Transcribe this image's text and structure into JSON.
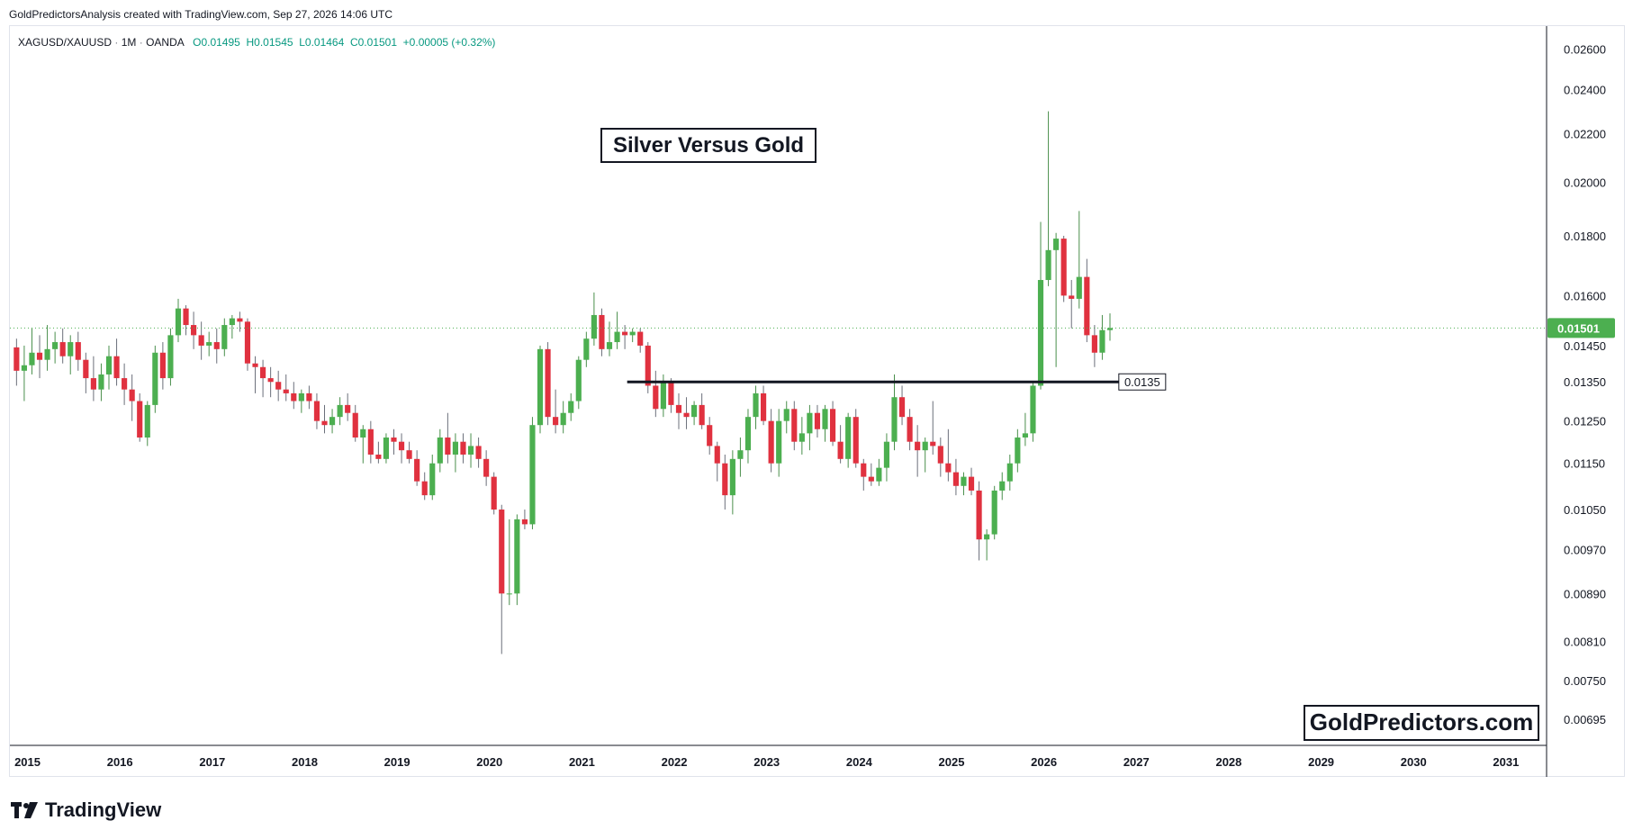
{
  "credit": "GoldPredictorsAnalysis created with TradingView.com, Sep 27, 2026 14:06 UTC",
  "legend": {
    "symbol": "XAGUSD/XAUUSD",
    "interval": "1M",
    "source": "OANDA",
    "open": "O0.01495",
    "high": "H0.01545",
    "low": "L0.01464",
    "close": "C0.01501",
    "change": "+0.00005 (+0.32%)"
  },
  "annotations": {
    "title": "Silver Versus Gold",
    "watermark": "GoldPredictors.com",
    "support_label": "0.0135"
  },
  "brand": {
    "name": "TradingView"
  },
  "colors": {
    "up": "#4caf50",
    "down": "#e0313f",
    "price_badge": "#4caf50",
    "support_line": "#131722"
  },
  "chart_data": {
    "type": "candlestick",
    "timeframe": "1M",
    "y_scale": "log",
    "ylim": [
      0.0066,
      0.0272
    ],
    "xlim": [
      2014.97,
      2031.6
    ],
    "y_ticks": [
      "0.02600",
      "0.02400",
      "0.02200",
      "0.02000",
      "0.01800",
      "0.01600",
      "0.01450",
      "0.01350",
      "0.01250",
      "0.01150",
      "0.01050",
      "0.00970",
      "0.00890",
      "0.00810",
      "0.00750",
      "0.00695"
    ],
    "x_ticks": [
      "2015",
      "2016",
      "2017",
      "2018",
      "2019",
      "2020",
      "2021",
      "2022",
      "2023",
      "2024",
      "2025",
      "2026",
      "2027",
      "2028",
      "2029",
      "2030",
      "2031"
    ],
    "last_price": "0.01501",
    "support": {
      "value": 0.0135,
      "from": 2021.65,
      "to": 2027.0
    },
    "candles": [
      {
        "o": 0.01445,
        "h": 0.0147,
        "l": 0.0134,
        "c": 0.0138
      },
      {
        "o": 0.0138,
        "h": 0.0145,
        "l": 0.013,
        "c": 0.01395
      },
      {
        "o": 0.01395,
        "h": 0.015,
        "l": 0.0137,
        "c": 0.0143
      },
      {
        "o": 0.0143,
        "h": 0.0148,
        "l": 0.0136,
        "c": 0.0141
      },
      {
        "o": 0.0141,
        "h": 0.0151,
        "l": 0.0138,
        "c": 0.0144
      },
      {
        "o": 0.0144,
        "h": 0.0149,
        "l": 0.014,
        "c": 0.0146
      },
      {
        "o": 0.0146,
        "h": 0.015,
        "l": 0.014,
        "c": 0.0142
      },
      {
        "o": 0.0142,
        "h": 0.0148,
        "l": 0.0137,
        "c": 0.0146
      },
      {
        "o": 0.0146,
        "h": 0.0149,
        "l": 0.0138,
        "c": 0.0141
      },
      {
        "o": 0.0141,
        "h": 0.0143,
        "l": 0.0132,
        "c": 0.0136
      },
      {
        "o": 0.0136,
        "h": 0.0142,
        "l": 0.013,
        "c": 0.0133
      },
      {
        "o": 0.0133,
        "h": 0.014,
        "l": 0.013,
        "c": 0.0137
      },
      {
        "o": 0.0137,
        "h": 0.0145,
        "l": 0.0133,
        "c": 0.0142
      },
      {
        "o": 0.0142,
        "h": 0.0147,
        "l": 0.0134,
        "c": 0.0136
      },
      {
        "o": 0.0136,
        "h": 0.014,
        "l": 0.0129,
        "c": 0.0133
      },
      {
        "o": 0.0133,
        "h": 0.0137,
        "l": 0.0125,
        "c": 0.013
      },
      {
        "o": 0.013,
        "h": 0.0132,
        "l": 0.012,
        "c": 0.0121
      },
      {
        "o": 0.0121,
        "h": 0.013,
        "l": 0.0119,
        "c": 0.0129
      },
      {
        "o": 0.0129,
        "h": 0.0145,
        "l": 0.0127,
        "c": 0.0143
      },
      {
        "o": 0.0143,
        "h": 0.0146,
        "l": 0.0133,
        "c": 0.0136
      },
      {
        "o": 0.0136,
        "h": 0.015,
        "l": 0.0134,
        "c": 0.0148
      },
      {
        "o": 0.0148,
        "h": 0.0159,
        "l": 0.0146,
        "c": 0.0156
      },
      {
        "o": 0.0156,
        "h": 0.0157,
        "l": 0.0148,
        "c": 0.0151
      },
      {
        "o": 0.0151,
        "h": 0.0155,
        "l": 0.0144,
        "c": 0.0148
      },
      {
        "o": 0.0148,
        "h": 0.0152,
        "l": 0.0141,
        "c": 0.0145
      },
      {
        "o": 0.0145,
        "h": 0.0149,
        "l": 0.0142,
        "c": 0.0146
      },
      {
        "o": 0.0146,
        "h": 0.015,
        "l": 0.014,
        "c": 0.0144
      },
      {
        "o": 0.0144,
        "h": 0.0153,
        "l": 0.0142,
        "c": 0.0151
      },
      {
        "o": 0.0151,
        "h": 0.0154,
        "l": 0.0147,
        "c": 0.0153
      },
      {
        "o": 0.0153,
        "h": 0.0155,
        "l": 0.0149,
        "c": 0.0152
      },
      {
        "o": 0.0152,
        "h": 0.0153,
        "l": 0.0138,
        "c": 0.014
      },
      {
        "o": 0.014,
        "h": 0.0142,
        "l": 0.0132,
        "c": 0.0139
      },
      {
        "o": 0.0139,
        "h": 0.0141,
        "l": 0.0131,
        "c": 0.0136
      },
      {
        "o": 0.0136,
        "h": 0.0139,
        "l": 0.0131,
        "c": 0.0135
      },
      {
        "o": 0.0135,
        "h": 0.0138,
        "l": 0.013,
        "c": 0.0133
      },
      {
        "o": 0.0133,
        "h": 0.0137,
        "l": 0.013,
        "c": 0.0132
      },
      {
        "o": 0.0132,
        "h": 0.0135,
        "l": 0.0128,
        "c": 0.013
      },
      {
        "o": 0.013,
        "h": 0.0133,
        "l": 0.0127,
        "c": 0.0132
      },
      {
        "o": 0.0132,
        "h": 0.0134,
        "l": 0.0128,
        "c": 0.013
      },
      {
        "o": 0.013,
        "h": 0.0132,
        "l": 0.0123,
        "c": 0.0125
      },
      {
        "o": 0.0125,
        "h": 0.0129,
        "l": 0.0122,
        "c": 0.0124
      },
      {
        "o": 0.0124,
        "h": 0.0128,
        "l": 0.0122,
        "c": 0.0126
      },
      {
        "o": 0.0126,
        "h": 0.0131,
        "l": 0.0124,
        "c": 0.0129
      },
      {
        "o": 0.0129,
        "h": 0.0132,
        "l": 0.0125,
        "c": 0.0127
      },
      {
        "o": 0.0127,
        "h": 0.0129,
        "l": 0.012,
        "c": 0.0121
      },
      {
        "o": 0.0121,
        "h": 0.0124,
        "l": 0.0115,
        "c": 0.0123
      },
      {
        "o": 0.0123,
        "h": 0.0125,
        "l": 0.0115,
        "c": 0.0117
      },
      {
        "o": 0.0117,
        "h": 0.012,
        "l": 0.0115,
        "c": 0.0116
      },
      {
        "o": 0.0116,
        "h": 0.0122,
        "l": 0.0115,
        "c": 0.0121
      },
      {
        "o": 0.0121,
        "h": 0.0123,
        "l": 0.0117,
        "c": 0.012
      },
      {
        "o": 0.012,
        "h": 0.0122,
        "l": 0.0115,
        "c": 0.0118
      },
      {
        "o": 0.0118,
        "h": 0.012,
        "l": 0.0115,
        "c": 0.0116
      },
      {
        "o": 0.0116,
        "h": 0.0118,
        "l": 0.011,
        "c": 0.0111
      },
      {
        "o": 0.0111,
        "h": 0.0113,
        "l": 0.0107,
        "c": 0.0108
      },
      {
        "o": 0.0108,
        "h": 0.0117,
        "l": 0.0107,
        "c": 0.0115
      },
      {
        "o": 0.0115,
        "h": 0.0123,
        "l": 0.0113,
        "c": 0.0121
      },
      {
        "o": 0.0121,
        "h": 0.0127,
        "l": 0.0115,
        "c": 0.0117
      },
      {
        "o": 0.0117,
        "h": 0.0122,
        "l": 0.0113,
        "c": 0.012
      },
      {
        "o": 0.012,
        "h": 0.0122,
        "l": 0.0115,
        "c": 0.0117
      },
      {
        "o": 0.0117,
        "h": 0.0122,
        "l": 0.0114,
        "c": 0.0119
      },
      {
        "o": 0.0119,
        "h": 0.0121,
        "l": 0.0114,
        "c": 0.0116
      },
      {
        "o": 0.0116,
        "h": 0.0118,
        "l": 0.011,
        "c": 0.0112
      },
      {
        "o": 0.0112,
        "h": 0.0113,
        "l": 0.0104,
        "c": 0.0105
      },
      {
        "o": 0.0105,
        "h": 0.0106,
        "l": 0.0079,
        "c": 0.0089
      },
      {
        "o": 0.0089,
        "h": 0.0103,
        "l": 0.0087,
        "c": 0.0089
      },
      {
        "o": 0.0089,
        "h": 0.0104,
        "l": 0.0087,
        "c": 0.0103
      },
      {
        "o": 0.0103,
        "h": 0.0105,
        "l": 0.0101,
        "c": 0.0102
      },
      {
        "o": 0.0102,
        "h": 0.0126,
        "l": 0.0101,
        "c": 0.0124
      },
      {
        "o": 0.0124,
        "h": 0.0145,
        "l": 0.0122,
        "c": 0.0144
      },
      {
        "o": 0.0144,
        "h": 0.0146,
        "l": 0.0124,
        "c": 0.0126
      },
      {
        "o": 0.0126,
        "h": 0.0133,
        "l": 0.0122,
        "c": 0.0124
      },
      {
        "o": 0.0124,
        "h": 0.013,
        "l": 0.0122,
        "c": 0.0127
      },
      {
        "o": 0.0127,
        "h": 0.0132,
        "l": 0.0125,
        "c": 0.013
      },
      {
        "o": 0.013,
        "h": 0.0142,
        "l": 0.0128,
        "c": 0.0141
      },
      {
        "o": 0.0141,
        "h": 0.0149,
        "l": 0.0139,
        "c": 0.0147
      },
      {
        "o": 0.0147,
        "h": 0.0161,
        "l": 0.0145,
        "c": 0.0154
      },
      {
        "o": 0.0154,
        "h": 0.0156,
        "l": 0.0142,
        "c": 0.0144
      },
      {
        "o": 0.0144,
        "h": 0.0152,
        "l": 0.0142,
        "c": 0.0146
      },
      {
        "o": 0.0146,
        "h": 0.0155,
        "l": 0.0144,
        "c": 0.0149
      },
      {
        "o": 0.0149,
        "h": 0.0151,
        "l": 0.0144,
        "c": 0.0148
      },
      {
        "o": 0.0148,
        "h": 0.015,
        "l": 0.0146,
        "c": 0.0149
      },
      {
        "o": 0.0149,
        "h": 0.015,
        "l": 0.0143,
        "c": 0.0145
      },
      {
        "o": 0.0145,
        "h": 0.0146,
        "l": 0.0132,
        "c": 0.0134
      },
      {
        "o": 0.0134,
        "h": 0.0138,
        "l": 0.0126,
        "c": 0.0128
      },
      {
        "o": 0.0128,
        "h": 0.0137,
        "l": 0.0126,
        "c": 0.0135
      },
      {
        "o": 0.0135,
        "h": 0.0136,
        "l": 0.0127,
        "c": 0.0129
      },
      {
        "o": 0.0129,
        "h": 0.0132,
        "l": 0.0123,
        "c": 0.0127
      },
      {
        "o": 0.0127,
        "h": 0.0131,
        "l": 0.0123,
        "c": 0.0126
      },
      {
        "o": 0.0126,
        "h": 0.013,
        "l": 0.0124,
        "c": 0.0129
      },
      {
        "o": 0.0129,
        "h": 0.0132,
        "l": 0.0123,
        "c": 0.0124
      },
      {
        "o": 0.0124,
        "h": 0.0126,
        "l": 0.0117,
        "c": 0.0119
      },
      {
        "o": 0.0119,
        "h": 0.012,
        "l": 0.0111,
        "c": 0.0115
      },
      {
        "o": 0.0115,
        "h": 0.0117,
        "l": 0.0105,
        "c": 0.0108
      },
      {
        "o": 0.0108,
        "h": 0.0118,
        "l": 0.0104,
        "c": 0.0116
      },
      {
        "o": 0.0116,
        "h": 0.0121,
        "l": 0.0112,
        "c": 0.0118
      },
      {
        "o": 0.0118,
        "h": 0.0128,
        "l": 0.0115,
        "c": 0.0126
      },
      {
        "o": 0.0126,
        "h": 0.0134,
        "l": 0.0123,
        "c": 0.0132
      },
      {
        "o": 0.0132,
        "h": 0.0134,
        "l": 0.0124,
        "c": 0.0125
      },
      {
        "o": 0.0125,
        "h": 0.0128,
        "l": 0.0113,
        "c": 0.0115
      },
      {
        "o": 0.0115,
        "h": 0.0128,
        "l": 0.0112,
        "c": 0.0125
      },
      {
        "o": 0.0125,
        "h": 0.013,
        "l": 0.0122,
        "c": 0.0128
      },
      {
        "o": 0.0128,
        "h": 0.013,
        "l": 0.0118,
        "c": 0.012
      },
      {
        "o": 0.012,
        "h": 0.0126,
        "l": 0.0117,
        "c": 0.0122
      },
      {
        "o": 0.0122,
        "h": 0.0129,
        "l": 0.0118,
        "c": 0.0127
      },
      {
        "o": 0.0127,
        "h": 0.0129,
        "l": 0.0121,
        "c": 0.0123
      },
      {
        "o": 0.0123,
        "h": 0.0129,
        "l": 0.012,
        "c": 0.0128
      },
      {
        "o": 0.0128,
        "h": 0.013,
        "l": 0.0119,
        "c": 0.012
      },
      {
        "o": 0.012,
        "h": 0.0124,
        "l": 0.0115,
        "c": 0.0116
      },
      {
        "o": 0.0116,
        "h": 0.0127,
        "l": 0.0114,
        "c": 0.0126
      },
      {
        "o": 0.0126,
        "h": 0.0128,
        "l": 0.0114,
        "c": 0.0115
      },
      {
        "o": 0.0115,
        "h": 0.0116,
        "l": 0.0109,
        "c": 0.0112
      },
      {
        "o": 0.0112,
        "h": 0.0115,
        "l": 0.011,
        "c": 0.0111
      },
      {
        "o": 0.0111,
        "h": 0.0116,
        "l": 0.011,
        "c": 0.0114
      },
      {
        "o": 0.0114,
        "h": 0.0122,
        "l": 0.0111,
        "c": 0.012
      },
      {
        "o": 0.012,
        "h": 0.0137,
        "l": 0.0118,
        "c": 0.0131
      },
      {
        "o": 0.0131,
        "h": 0.0134,
        "l": 0.0124,
        "c": 0.0126
      },
      {
        "o": 0.0126,
        "h": 0.0128,
        "l": 0.0118,
        "c": 0.012
      },
      {
        "o": 0.012,
        "h": 0.0124,
        "l": 0.0112,
        "c": 0.0118
      },
      {
        "o": 0.0118,
        "h": 0.0121,
        "l": 0.0113,
        "c": 0.012
      },
      {
        "o": 0.012,
        "h": 0.013,
        "l": 0.0117,
        "c": 0.0119
      },
      {
        "o": 0.0119,
        "h": 0.0121,
        "l": 0.0112,
        "c": 0.0115
      },
      {
        "o": 0.0115,
        "h": 0.0123,
        "l": 0.0111,
        "c": 0.0113
      },
      {
        "o": 0.0113,
        "h": 0.0116,
        "l": 0.0108,
        "c": 0.011
      },
      {
        "o": 0.011,
        "h": 0.0113,
        "l": 0.0108,
        "c": 0.0112
      },
      {
        "o": 0.0112,
        "h": 0.0114,
        "l": 0.0108,
        "c": 0.0109
      },
      {
        "o": 0.0109,
        "h": 0.0111,
        "l": 0.0095,
        "c": 0.0099
      },
      {
        "o": 0.0099,
        "h": 0.0101,
        "l": 0.0095,
        "c": 0.01
      },
      {
        "o": 0.01,
        "h": 0.011,
        "l": 0.0099,
        "c": 0.0109
      },
      {
        "o": 0.0109,
        "h": 0.0113,
        "l": 0.0107,
        "c": 0.0111
      },
      {
        "o": 0.0111,
        "h": 0.0117,
        "l": 0.0109,
        "c": 0.0115
      },
      {
        "o": 0.0115,
        "h": 0.0123,
        "l": 0.0113,
        "c": 0.0121
      },
      {
        "o": 0.0121,
        "h": 0.0127,
        "l": 0.0119,
        "c": 0.0122
      },
      {
        "o": 0.0122,
        "h": 0.0135,
        "l": 0.012,
        "c": 0.0134
      },
      {
        "o": 0.0134,
        "h": 0.0185,
        "l": 0.0133,
        "c": 0.0165
      },
      {
        "o": 0.0165,
        "h": 0.023,
        "l": 0.0163,
        "c": 0.0175
      },
      {
        "o": 0.0175,
        "h": 0.0181,
        "l": 0.0139,
        "c": 0.0179
      },
      {
        "o": 0.0179,
        "h": 0.018,
        "l": 0.0158,
        "c": 0.016
      },
      {
        "o": 0.016,
        "h": 0.0165,
        "l": 0.015,
        "c": 0.0159
      },
      {
        "o": 0.0159,
        "h": 0.0189,
        "l": 0.0156,
        "c": 0.0166
      },
      {
        "o": 0.0166,
        "h": 0.0172,
        "l": 0.0146,
        "c": 0.0148
      },
      {
        "o": 0.0148,
        "h": 0.0151,
        "l": 0.0139,
        "c": 0.0143
      },
      {
        "o": 0.0143,
        "h": 0.0154,
        "l": 0.0141,
        "c": 0.01495
      },
      {
        "o": 0.01495,
        "h": 0.01545,
        "l": 0.01464,
        "c": 0.01501
      }
    ]
  }
}
